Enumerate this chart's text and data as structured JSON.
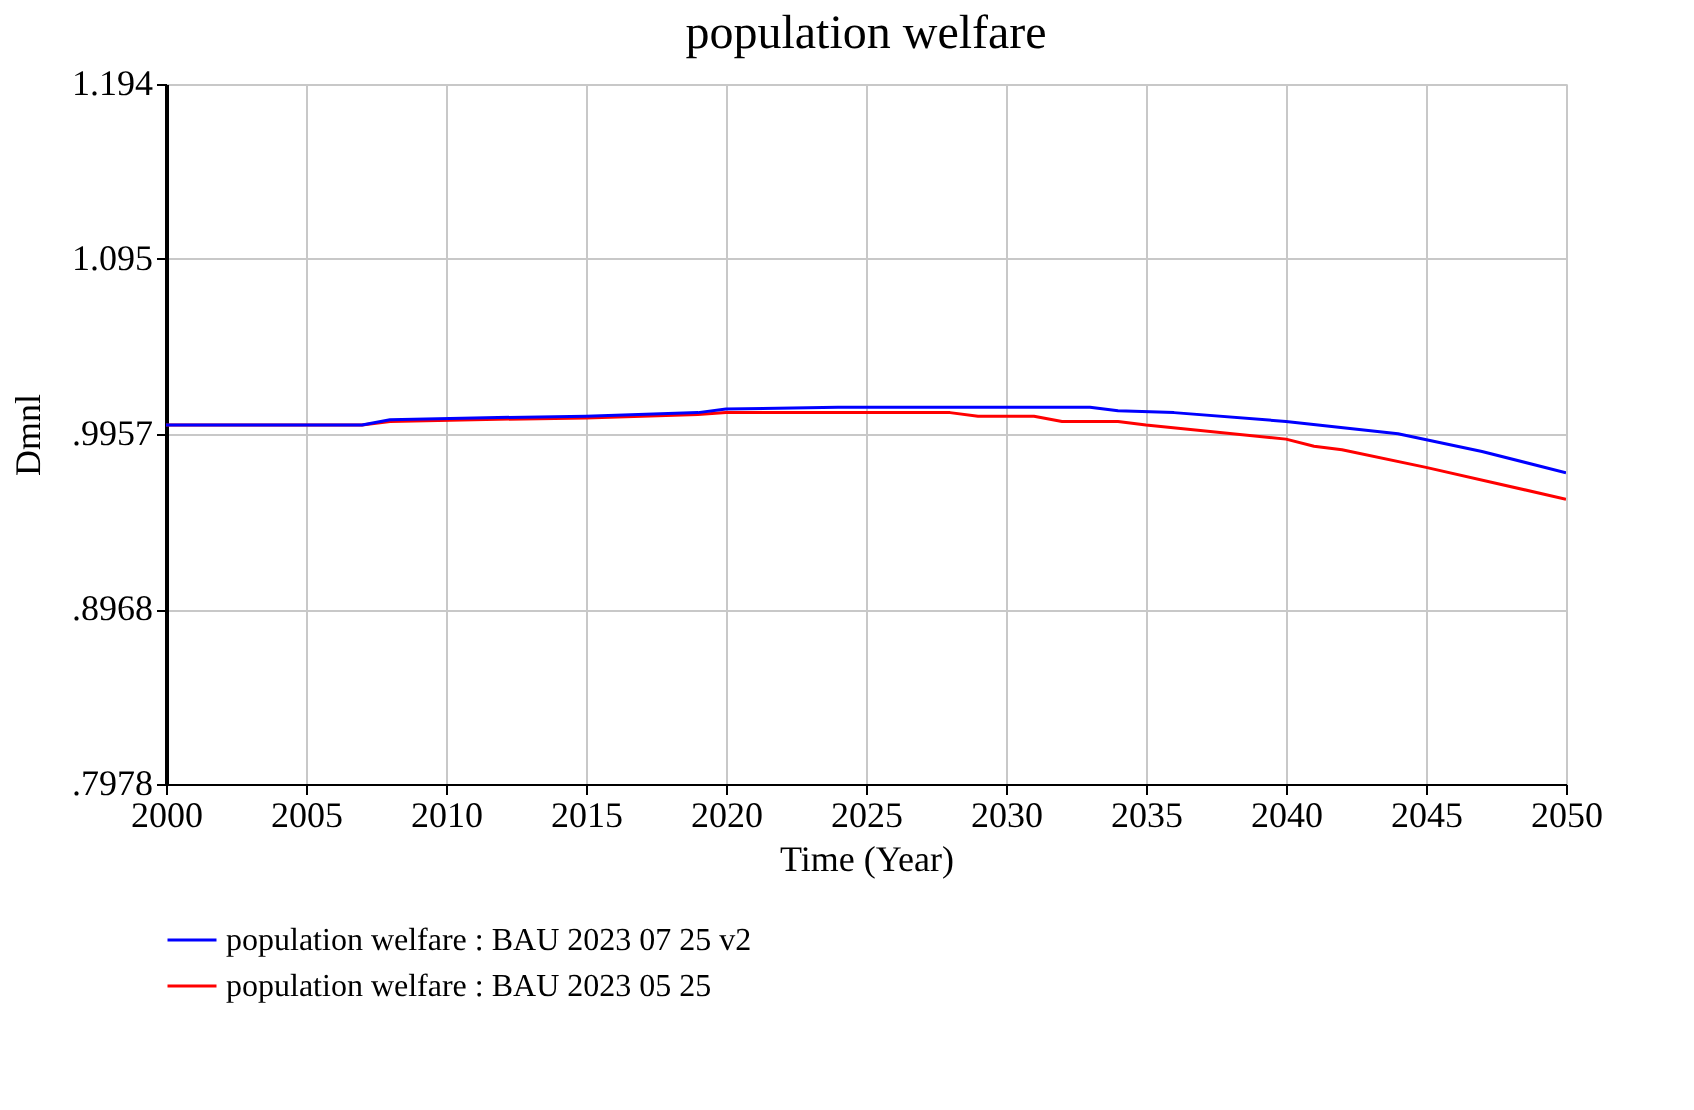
{
  "chart_data": {
    "type": "line",
    "title": "population welfare",
    "xlabel": "Time (Year)",
    "ylabel": "Dmnl",
    "xlim": [
      2000,
      2050
    ],
    "xticks": [
      2000,
      2005,
      2010,
      2015,
      2020,
      2025,
      2030,
      2035,
      2040,
      2045,
      2050
    ],
    "ylim": [
      0.7978,
      1.194
    ],
    "yticks": [
      {
        "value": 0.7978,
        "label": ".7978"
      },
      {
        "value": 0.8968,
        "label": ".8968"
      },
      {
        "value": 0.9957,
        "label": ".9957"
      },
      {
        "value": 1.095,
        "label": "1.095"
      },
      {
        "value": 1.194,
        "label": "1.194"
      }
    ],
    "grid": true,
    "legend": "bottom",
    "line_style": "solid",
    "marker": "none",
    "series": [
      {
        "name": "population welfare : BAU 2023 07 25 v2",
        "color": "#0000ff",
        "x": [
          2000,
          2007,
          2008,
          2011,
          2015,
          2019,
          2020,
          2024,
          2033,
          2034,
          2036,
          2040,
          2044,
          2047,
          2050
        ],
        "values": [
          1.001,
          1.001,
          1.004,
          1.005,
          1.006,
          1.008,
          1.01,
          1.011,
          1.011,
          1.009,
          1.008,
          1.003,
          0.996,
          0.986,
          0.974
        ]
      },
      {
        "name": "population welfare : BAU 2023 05 25",
        "color": "#ff0000",
        "x": [
          2000,
          2007,
          2008,
          2011,
          2015,
          2019,
          2020,
          2028,
          2029,
          2031,
          2032,
          2034,
          2035,
          2040,
          2041,
          2042,
          2045,
          2050
        ],
        "values": [
          1.001,
          1.001,
          1.003,
          1.004,
          1.005,
          1.007,
          1.008,
          1.008,
          1.006,
          1.006,
          1.003,
          1.003,
          1.001,
          0.993,
          0.989,
          0.987,
          0.977,
          0.959
        ]
      }
    ]
  }
}
